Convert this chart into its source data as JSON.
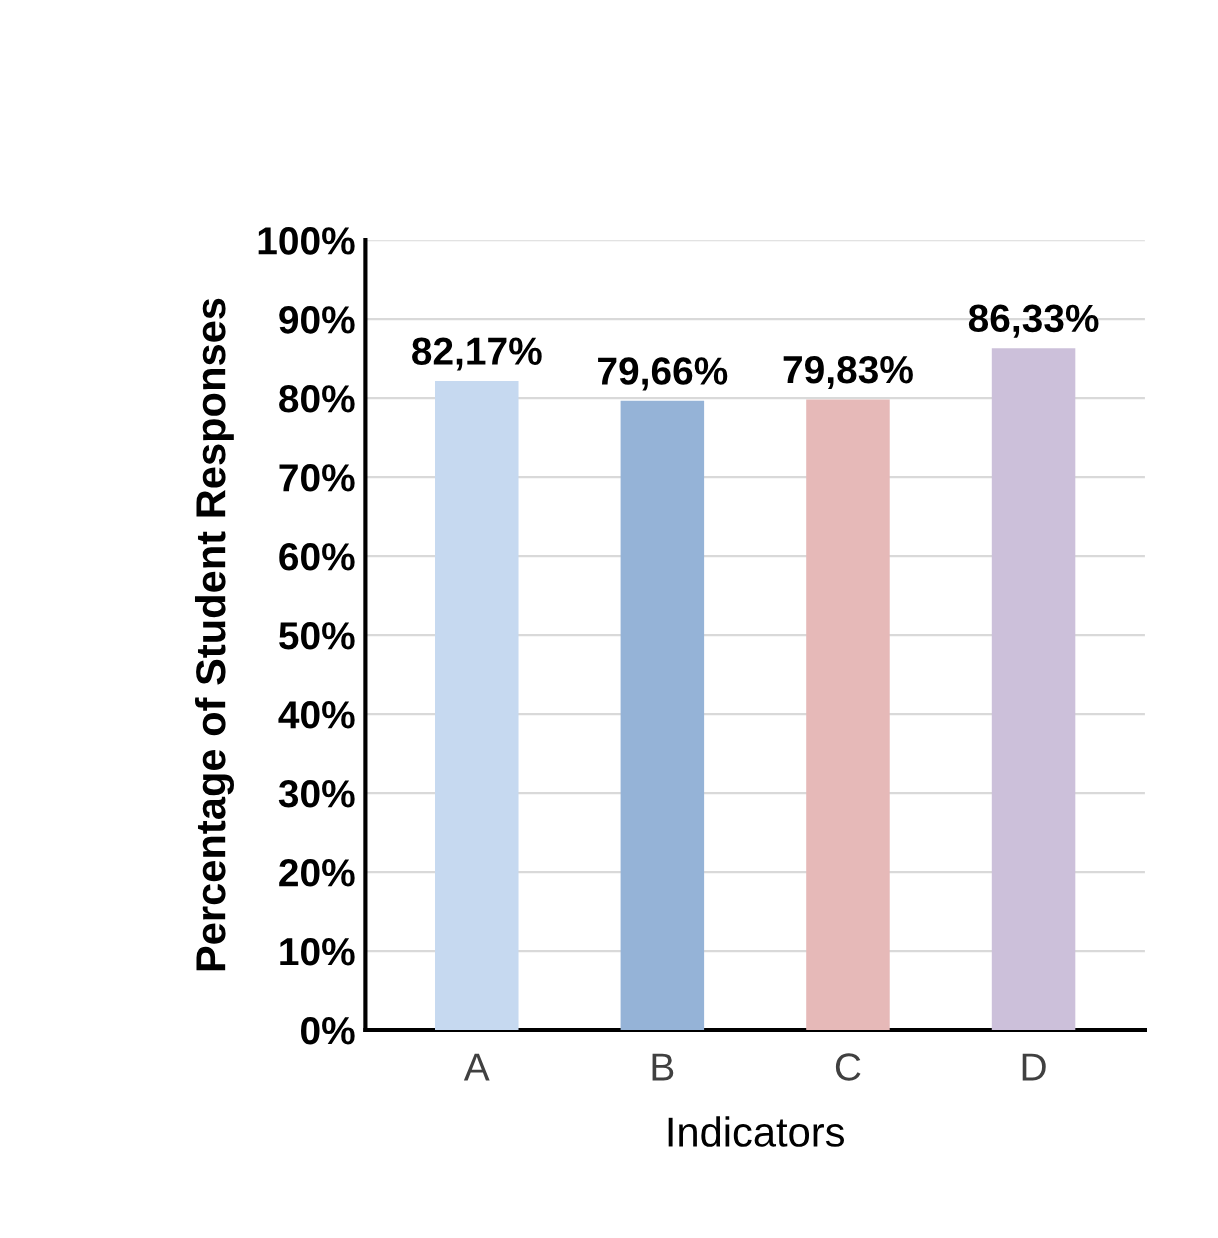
{
  "chart_data": {
    "type": "bar",
    "xlabel": "Indicators",
    "ylabel": "Percentage of Student Responses",
    "categories": [
      "A",
      "B",
      "C",
      "D"
    ],
    "values": [
      82.17,
      79.66,
      79.83,
      86.33
    ],
    "value_labels": [
      "82,17%",
      "79,66%",
      "79,83%",
      "86,33%"
    ],
    "colors": [
      "#c6d9f0",
      "#95b3d7",
      "#e6b9b8",
      "#ccc0da"
    ],
    "ylim": [
      0,
      100
    ],
    "yticks": [
      {
        "value": 0,
        "label": "0%"
      },
      {
        "value": 10,
        "label": "10%"
      },
      {
        "value": 20,
        "label": "20%"
      },
      {
        "value": 30,
        "label": "30%"
      },
      {
        "value": 40,
        "label": "40%"
      },
      {
        "value": 50,
        "label": "50%"
      },
      {
        "value": 60,
        "label": "60%"
      },
      {
        "value": 70,
        "label": "70%"
      },
      {
        "value": 80,
        "label": "80%"
      },
      {
        "value": 90,
        "label": "90%"
      },
      {
        "value": 100,
        "label": "100%"
      }
    ],
    "grid": "y"
  }
}
